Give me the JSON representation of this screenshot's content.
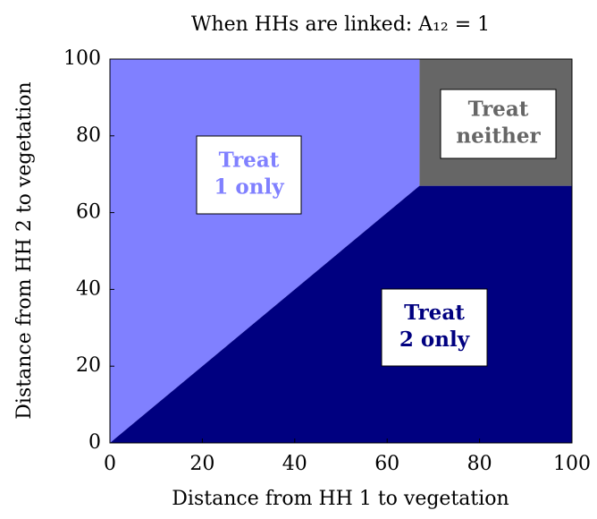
{
  "chart_data": {
    "type": "region",
    "title": "When HHs are linked: A₁₂ = 1",
    "xlabel": "Distance from HH 1 to vegetation",
    "ylabel": "Distance from HH 2 to vegetation",
    "xlim": [
      0,
      100
    ],
    "ylim": [
      0,
      100
    ],
    "xticks": [
      0,
      20,
      40,
      60,
      80,
      100
    ],
    "yticks": [
      0,
      20,
      40,
      60,
      80,
      100
    ],
    "regions": [
      {
        "name": [
          "Treat",
          "1 only"
        ],
        "color": "#8080ff",
        "x": [
          0,
          0,
          67,
          67
        ],
        "y": [
          0,
          100,
          100,
          67
        ]
      },
      {
        "name": [
          "Treat",
          "2 only"
        ],
        "color": "#000080",
        "x": [
          0,
          100,
          100,
          67
        ],
        "y": [
          0,
          0,
          67,
          67
        ]
      },
      {
        "name": [
          "Treat",
          "neither"
        ],
        "color": "#666666",
        "x": [
          67,
          67,
          100,
          100
        ],
        "y": [
          67,
          100,
          100,
          67
        ]
      }
    ]
  }
}
